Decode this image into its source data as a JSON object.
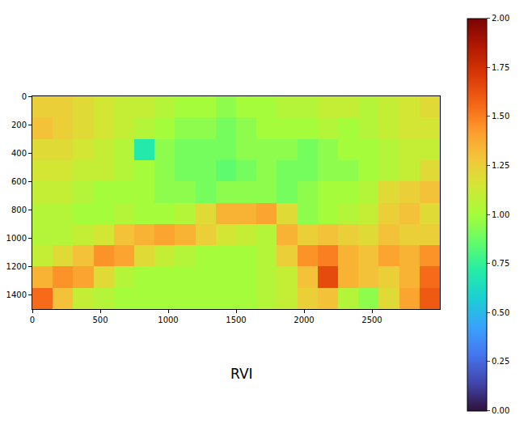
{
  "chart_data": {
    "type": "heatmap",
    "title": "RVI",
    "x": [
      75,
      225,
      375,
      525,
      675,
      825,
      975,
      1125,
      1275,
      1425,
      1575,
      1725,
      1875,
      2025,
      2175,
      2325,
      2475,
      2625,
      2775,
      2925
    ],
    "y": [
      75,
      225,
      375,
      525,
      675,
      825,
      975,
      1125,
      1275,
      1425
    ],
    "z": [
      [
        1.25,
        1.25,
        1.2,
        1.15,
        1.1,
        1.1,
        1.05,
        1.0,
        1.0,
        0.95,
        1.0,
        1.0,
        1.05,
        1.05,
        1.1,
        1.1,
        1.05,
        1.1,
        1.15,
        1.2
      ],
      [
        1.3,
        1.25,
        1.2,
        1.15,
        1.1,
        1.05,
        1.0,
        0.95,
        0.95,
        0.9,
        0.95,
        1.0,
        1.0,
        1.0,
        1.05,
        1.0,
        1.05,
        1.1,
        1.15,
        1.15
      ],
      [
        1.2,
        1.2,
        1.15,
        1.1,
        1.05,
        0.7,
        0.95,
        0.9,
        0.9,
        0.9,
        0.95,
        0.95,
        0.95,
        0.9,
        0.95,
        1.0,
        1.0,
        1.05,
        1.1,
        1.1
      ],
      [
        1.15,
        1.15,
        1.1,
        1.1,
        1.05,
        1.0,
        0.95,
        0.9,
        0.9,
        0.85,
        0.9,
        0.95,
        0.9,
        0.9,
        0.95,
        0.95,
        1.0,
        1.05,
        1.1,
        1.2
      ],
      [
        1.1,
        1.1,
        1.05,
        1.0,
        1.0,
        1.0,
        0.95,
        0.95,
        0.9,
        0.95,
        0.95,
        0.95,
        0.9,
        0.95,
        1.0,
        1.0,
        1.05,
        1.2,
        1.25,
        1.3
      ],
      [
        1.05,
        1.05,
        1.0,
        1.0,
        1.05,
        1.0,
        1.0,
        1.05,
        1.2,
        1.35,
        1.35,
        1.4,
        1.2,
        0.95,
        1.0,
        1.05,
        1.1,
        1.25,
        1.3,
        1.2
      ],
      [
        1.05,
        1.05,
        1.1,
        1.15,
        1.3,
        1.35,
        1.4,
        1.35,
        1.25,
        1.15,
        1.1,
        1.05,
        1.35,
        1.25,
        1.3,
        1.25,
        1.2,
        1.3,
        1.25,
        1.25
      ],
      [
        1.1,
        1.2,
        1.3,
        1.45,
        1.4,
        1.2,
        1.1,
        1.05,
        1.0,
        1.0,
        1.0,
        1.05,
        1.25,
        1.45,
        1.5,
        1.35,
        1.3,
        1.4,
        1.35,
        1.45
      ],
      [
        1.35,
        1.45,
        1.4,
        1.2,
        1.05,
        1.0,
        1.0,
        1.0,
        1.0,
        1.0,
        1.0,
        1.05,
        1.1,
        1.3,
        1.65,
        1.35,
        1.3,
        1.25,
        1.35,
        1.55
      ],
      [
        1.55,
        1.3,
        1.1,
        1.05,
        1.0,
        1.0,
        1.0,
        1.0,
        1.0,
        1.0,
        1.0,
        1.05,
        1.1,
        1.25,
        1.3,
        1.05,
        0.95,
        1.2,
        1.4,
        1.6
      ]
    ],
    "xlim": [
      0,
      3000
    ],
    "xticks": [
      0,
      500,
      1000,
      1500,
      2000,
      2500
    ],
    "ylim": [
      1500,
      0
    ],
    "yticks": [
      0,
      200,
      400,
      600,
      800,
      1000,
      1200,
      1400
    ],
    "zlim": [
      0,
      2
    ],
    "zticks": [
      {
        "value": 0,
        "label": "0.00"
      },
      {
        "value": 0.25,
        "label": "0.25"
      },
      {
        "value": 0.5,
        "label": "0.50"
      },
      {
        "value": 0.75,
        "label": "0.75"
      },
      {
        "value": 1,
        "label": "1.00"
      },
      {
        "value": 1.25,
        "label": "1.25"
      },
      {
        "value": 1.5,
        "label": "1.50"
      },
      {
        "value": 1.75,
        "label": "1.75"
      },
      {
        "value": 2,
        "label": "2.00"
      }
    ]
  }
}
